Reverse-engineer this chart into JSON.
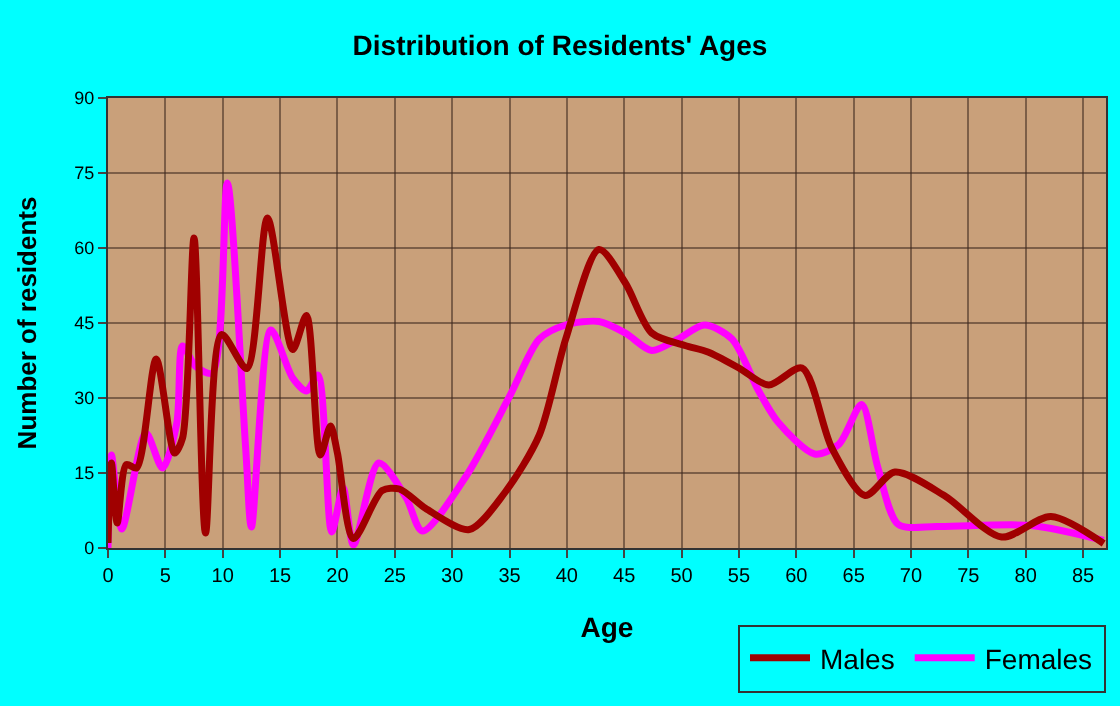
{
  "chart_data": {
    "type": "line",
    "title": "Distribution of Residents' Ages",
    "xlabel": "Age",
    "ylabel": "Number of residents",
    "series": [
      {
        "name": "Males",
        "color": "#a00000",
        "x": [
          0,
          0.3,
          0.8,
          1.6,
          2.5,
          4.2,
          5.8,
          6.5,
          7.5,
          8.5,
          9.9,
          12.1,
          13.9,
          16.1,
          17.3,
          18.5,
          19.4,
          20,
          21.4,
          23.9,
          25.4,
          27.7,
          31.5,
          34.6,
          37.6,
          39.9,
          42.8,
          45.1,
          47.4,
          50.3,
          52.3,
          55,
          57.6,
          60.5,
          63.1,
          66,
          68.6,
          72.9,
          77.9,
          82.2,
          86.8
        ],
        "values": [
          1,
          17,
          5,
          16.7,
          16,
          37.8,
          19,
          22,
          62,
          3,
          42.7,
          35.9,
          66,
          39.7,
          46.5,
          18.6,
          24.4,
          19,
          1.9,
          11.5,
          11.8,
          7.9,
          3.7,
          11.1,
          22.6,
          41.8,
          59.7,
          53,
          43,
          40.5,
          39.2,
          36,
          32.6,
          36,
          20,
          10.5,
          15.2,
          10.5,
          2.2,
          6.3,
          0.9
        ]
      },
      {
        "name": "Females",
        "color": "#ff00ff",
        "x": [
          0,
          0.3,
          1.2,
          3.3,
          4.75,
          6,
          6.5,
          7.65,
          9.1,
          10.4,
          12,
          12.5,
          14.2,
          16.1,
          17.3,
          18.3,
          19.5,
          20.5,
          21.4,
          23.6,
          26,
          27.4,
          31.2,
          35,
          37.6,
          39.9,
          42.8,
          45.1,
          47.4,
          49.7,
          52,
          54.4,
          56.7,
          58.4,
          61.6,
          63.7,
          65.7,
          67.1,
          68.9,
          72.3,
          80.5,
          86.8
        ],
        "values": [
          0,
          18.6,
          3.8,
          23,
          16,
          25,
          40.4,
          36.3,
          35,
          73,
          20,
          4.2,
          43.6,
          34,
          31.4,
          34.6,
          3.2,
          12,
          0.6,
          17,
          10,
          3.4,
          14.3,
          30.3,
          41.8,
          44.6,
          45.3,
          43,
          39.5,
          41.8,
          44.6,
          41.8,
          31.5,
          25.2,
          18.8,
          20.7,
          28.7,
          16.2,
          4.7,
          4.3,
          4.5,
          1.5
        ]
      }
    ],
    "xlim": [
      0,
      87
    ],
    "xticks": [
      0,
      5,
      10,
      15,
      20,
      25,
      30,
      35,
      40,
      45,
      50,
      55,
      60,
      65,
      70,
      75,
      80,
      85
    ],
    "ylim": [
      0,
      90
    ],
    "yticks": [
      0,
      15,
      30,
      45,
      60,
      75,
      90
    ],
    "grid": true,
    "legend": "bottom right",
    "marker": "none",
    "line_style": "solid"
  }
}
